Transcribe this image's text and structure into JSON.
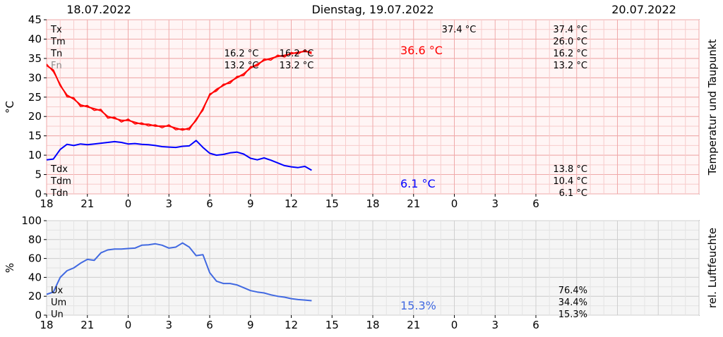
{
  "header": {
    "date_left": "18.07.2022",
    "date_center": "Dienstag, 19.07.2022",
    "date_right": "20.07.2022"
  },
  "colors": {
    "temp": "#ff0000",
    "dew": "#0000ff",
    "humidity": "#4169e1",
    "stats_grey": "#8c8c8c",
    "temp_bg": "#fff5f5",
    "hum_bg": "#f5f5f5"
  },
  "chart_data": [
    {
      "type": "line",
      "id": "temperature",
      "ylabel": "°C",
      "right_label": "Temperatur und Taupunkt",
      "ylim": [
        0,
        45
      ],
      "yticks": [
        "0",
        "5",
        "10",
        "15",
        "20",
        "25",
        "30",
        "35",
        "40",
        "45"
      ],
      "xlim_hours": [
        18,
        66
      ],
      "xticks": [
        "18",
        "21",
        "0",
        "3",
        "6",
        "9",
        "12",
        "15",
        "18",
        "21",
        "0",
        "3",
        "6"
      ],
      "grid": true,
      "stats_left": [
        {
          "label": "Tx",
          "grey": false
        },
        {
          "label": "Tm",
          "grey": false
        },
        {
          "label": "Tn",
          "grey": false
        },
        {
          "label": "Fn",
          "grey": true
        },
        {
          "label": "Tdx",
          "grey": false
        },
        {
          "label": "Tdm",
          "grey": false
        },
        {
          "label": "Tdn",
          "grey": false
        }
      ],
      "stats_mid_1": [
        "16.2 °C",
        "13.2 °C"
      ],
      "stats_mid_2": [
        "16.2 °C",
        "13.2 °C"
      ],
      "stats_tx_day": "37.4 °C",
      "stats_right": [
        "37.4 °C",
        "26.0 °C",
        "16.2 °C",
        "13.2 °C"
      ],
      "stats_right_dew": [
        "13.8 °C",
        "10.4 °C",
        "6.1 °C"
      ],
      "end_label_temp": "36.6 °C",
      "end_label_dew": "6.1 °C",
      "series": [
        {
          "key": "temp",
          "x": [
            18.0,
            18.5,
            19.0,
            19.5,
            20.0,
            20.5,
            21.0,
            21.5,
            22.0,
            22.5,
            23.0,
            23.5,
            24.0,
            24.5,
            25.0,
            25.5,
            26.0,
            26.5,
            27.0,
            27.5,
            28.0,
            28.5,
            29.0,
            29.5,
            30.0,
            30.5,
            31.0,
            31.5,
            32.0,
            32.5,
            33.0,
            33.5,
            34.0,
            34.5,
            35.0,
            35.5,
            36.0,
            36.5,
            37.0,
            37.5
          ],
          "y": [
            33.2,
            32.0,
            28.0,
            25.5,
            24.5,
            23.0,
            22.5,
            22.0,
            21.5,
            20.0,
            19.5,
            19.0,
            19.0,
            18.5,
            18.0,
            18.0,
            17.5,
            17.5,
            17.5,
            17.0,
            16.5,
            17.0,
            19.0,
            22.0,
            25.5,
            27.0,
            28.0,
            29.0,
            30.0,
            31.0,
            32.5,
            33.5,
            34.5,
            35.0,
            35.5,
            35.8,
            36.2,
            36.6,
            36.8,
            36.6
          ]
        },
        {
          "key": "dew",
          "x": [
            18.0,
            18.5,
            19.0,
            19.5,
            20.0,
            20.5,
            21.0,
            21.5,
            22.0,
            22.5,
            23.0,
            23.5,
            24.0,
            24.5,
            25.0,
            25.5,
            26.0,
            26.5,
            27.0,
            27.5,
            28.0,
            28.5,
            29.0,
            29.5,
            30.0,
            30.5,
            31.0,
            31.5,
            32.0,
            32.5,
            33.0,
            33.5,
            34.0,
            34.5,
            35.0,
            35.5,
            36.0,
            36.5,
            37.0,
            37.5
          ],
          "y": [
            8.8,
            9.0,
            11.5,
            12.8,
            12.5,
            12.9,
            12.7,
            12.9,
            13.1,
            13.3,
            13.5,
            13.3,
            12.9,
            13.0,
            12.8,
            12.7,
            12.5,
            12.2,
            12.1,
            12.0,
            12.3,
            12.4,
            13.8,
            12.0,
            10.5,
            10.0,
            10.2,
            10.6,
            10.8,
            10.3,
            9.2,
            8.8,
            9.3,
            8.7,
            8.0,
            7.3,
            7.0,
            6.8,
            7.1,
            6.1
          ]
        }
      ]
    },
    {
      "type": "line",
      "id": "humidity",
      "ylabel": "%",
      "right_label": "rel. Luftfeuchte",
      "ylim": [
        0,
        100
      ],
      "yticks": [
        "0",
        "20",
        "40",
        "60",
        "80",
        "100"
      ],
      "xlim_hours": [
        18,
        66
      ],
      "xticks": [
        "18",
        "21",
        "0",
        "3",
        "6",
        "9",
        "12",
        "15",
        "18",
        "21",
        "0",
        "3",
        "6"
      ],
      "grid": true,
      "stats_left": [
        "Ux",
        "Um",
        "Un"
      ],
      "stats_right": [
        "76.4%",
        "34.4%",
        "15.3%"
      ],
      "end_label": "15.3%",
      "series": [
        {
          "key": "humidity",
          "x": [
            18.0,
            18.5,
            19.0,
            19.5,
            20.0,
            20.5,
            21.0,
            21.5,
            22.0,
            22.5,
            23.0,
            23.5,
            24.0,
            24.5,
            25.0,
            25.5,
            26.0,
            26.5,
            27.0,
            27.5,
            28.0,
            28.5,
            29.0,
            29.5,
            30.0,
            30.5,
            31.0,
            31.5,
            32.0,
            32.5,
            33.0,
            33.5,
            34.0,
            34.5,
            35.0,
            35.5,
            36.0,
            36.5,
            37.0,
            37.5
          ],
          "y": [
            22.0,
            24.5,
            40.0,
            47.0,
            50.0,
            55.0,
            59.0,
            58.0,
            66.0,
            69.0,
            70.0,
            70.0,
            70.5,
            71.0,
            74.0,
            74.5,
            75.5,
            74.0,
            71.0,
            72.0,
            76.4,
            72.0,
            63.0,
            64.0,
            45.0,
            36.0,
            33.5,
            33.5,
            32.0,
            29.0,
            26.0,
            24.5,
            23.5,
            21.5,
            20.0,
            19.0,
            17.5,
            16.5,
            16.0,
            15.3
          ]
        }
      ]
    }
  ]
}
